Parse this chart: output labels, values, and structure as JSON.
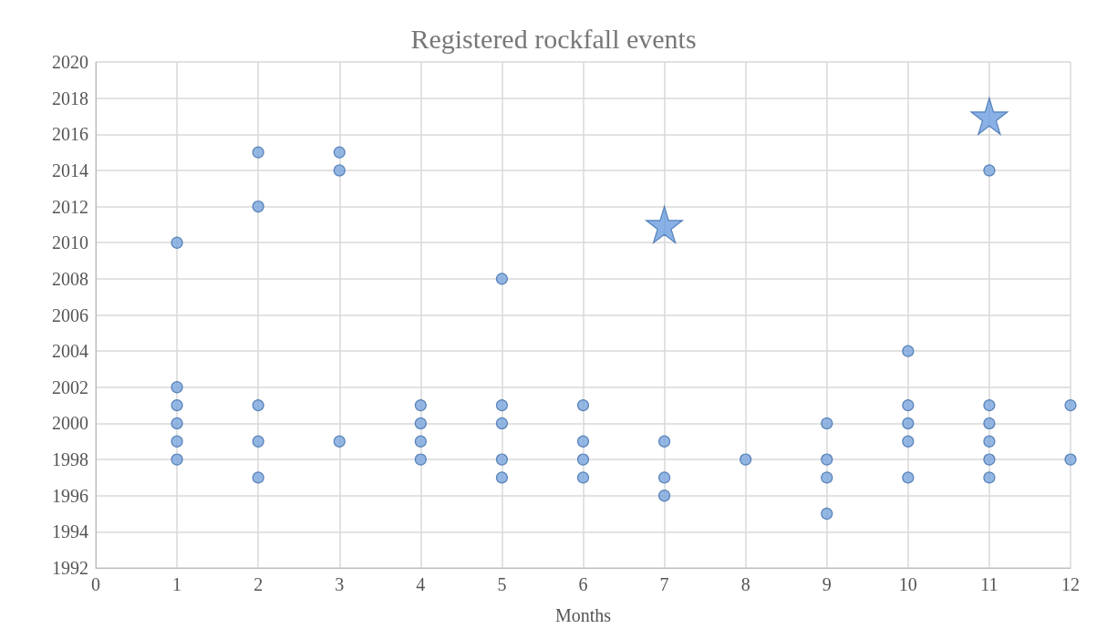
{
  "chart_data": {
    "type": "scatter",
    "title": "Registered rockfall events",
    "xlabel": "Months",
    "xlim": [
      0,
      12
    ],
    "xticks": [
      0,
      1,
      2,
      3,
      4,
      5,
      6,
      7,
      8,
      9,
      10,
      11,
      12
    ],
    "ylim": [
      1992,
      2020
    ],
    "yticks": [
      1992,
      1994,
      1996,
      1998,
      2000,
      2002,
      2004,
      2006,
      2008,
      2010,
      2012,
      2014,
      2016,
      2018,
      2020
    ],
    "grid": true,
    "series": [
      {
        "color": "#7aa5dc",
        "marker": "circle",
        "x": [
          1,
          1,
          1,
          1,
          1,
          1,
          2,
          2,
          2,
          2,
          2,
          3,
          3,
          3,
          4,
          4,
          4,
          4,
          5,
          5,
          5,
          5,
          5,
          6,
          6,
          6,
          6,
          7,
          7,
          7,
          8,
          9,
          9,
          9,
          9,
          10,
          10,
          10,
          10,
          10,
          11,
          11,
          11,
          11,
          11,
          11,
          12,
          12
        ],
        "values": [
          2010,
          2002,
          2001,
          2000,
          1999,
          1998,
          2015,
          2012,
          2001,
          1999,
          1997,
          2015,
          2014,
          1999,
          2001,
          2000,
          1999,
          1998,
          2008,
          2001,
          2000,
          1998,
          1997,
          2001,
          1999,
          1998,
          1997,
          1999,
          1997,
          1996,
          1998,
          2000,
          1998,
          1997,
          1995,
          2004,
          2001,
          2000,
          1999,
          1997,
          2014,
          2001,
          2000,
          1999,
          1998,
          1997,
          2001,
          1998
        ]
      },
      {
        "color": "#6b9de0",
        "marker": "star",
        "x": [
          7,
          11
        ],
        "values": [
          2011,
          2017
        ]
      }
    ]
  }
}
